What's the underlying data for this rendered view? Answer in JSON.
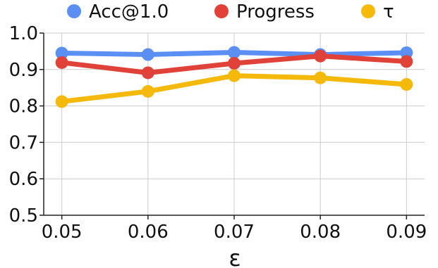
{
  "chart_data": {
    "type": "line",
    "title": "",
    "xlabel": "ε",
    "ylabel": "",
    "x": [
      0.05,
      0.06,
      0.07,
      0.08,
      0.09
    ],
    "x_tick_labels": [
      "0.05",
      "0.06",
      "0.07",
      "0.08",
      "0.09"
    ],
    "y_ticks": [
      0.5,
      0.6,
      0.7,
      0.8,
      0.9,
      1.0
    ],
    "y_tick_labels": [
      "0.5",
      "0.6",
      "0.7",
      "0.8",
      "0.9",
      "1.0"
    ],
    "ylim": [
      0.5,
      1.0
    ],
    "grid": true,
    "legend_position": "top",
    "series": [
      {
        "name": "Acc@1.0",
        "color": "#5b8ff3",
        "values": [
          0.945,
          0.941,
          0.947,
          0.941,
          0.946
        ]
      },
      {
        "name": "Progress",
        "color": "#e0423a",
        "values": [
          0.919,
          0.891,
          0.917,
          0.937,
          0.922
        ]
      },
      {
        "name": "τ",
        "color": "#f4b90b",
        "values": [
          0.812,
          0.84,
          0.883,
          0.877,
          0.859
        ]
      }
    ]
  }
}
